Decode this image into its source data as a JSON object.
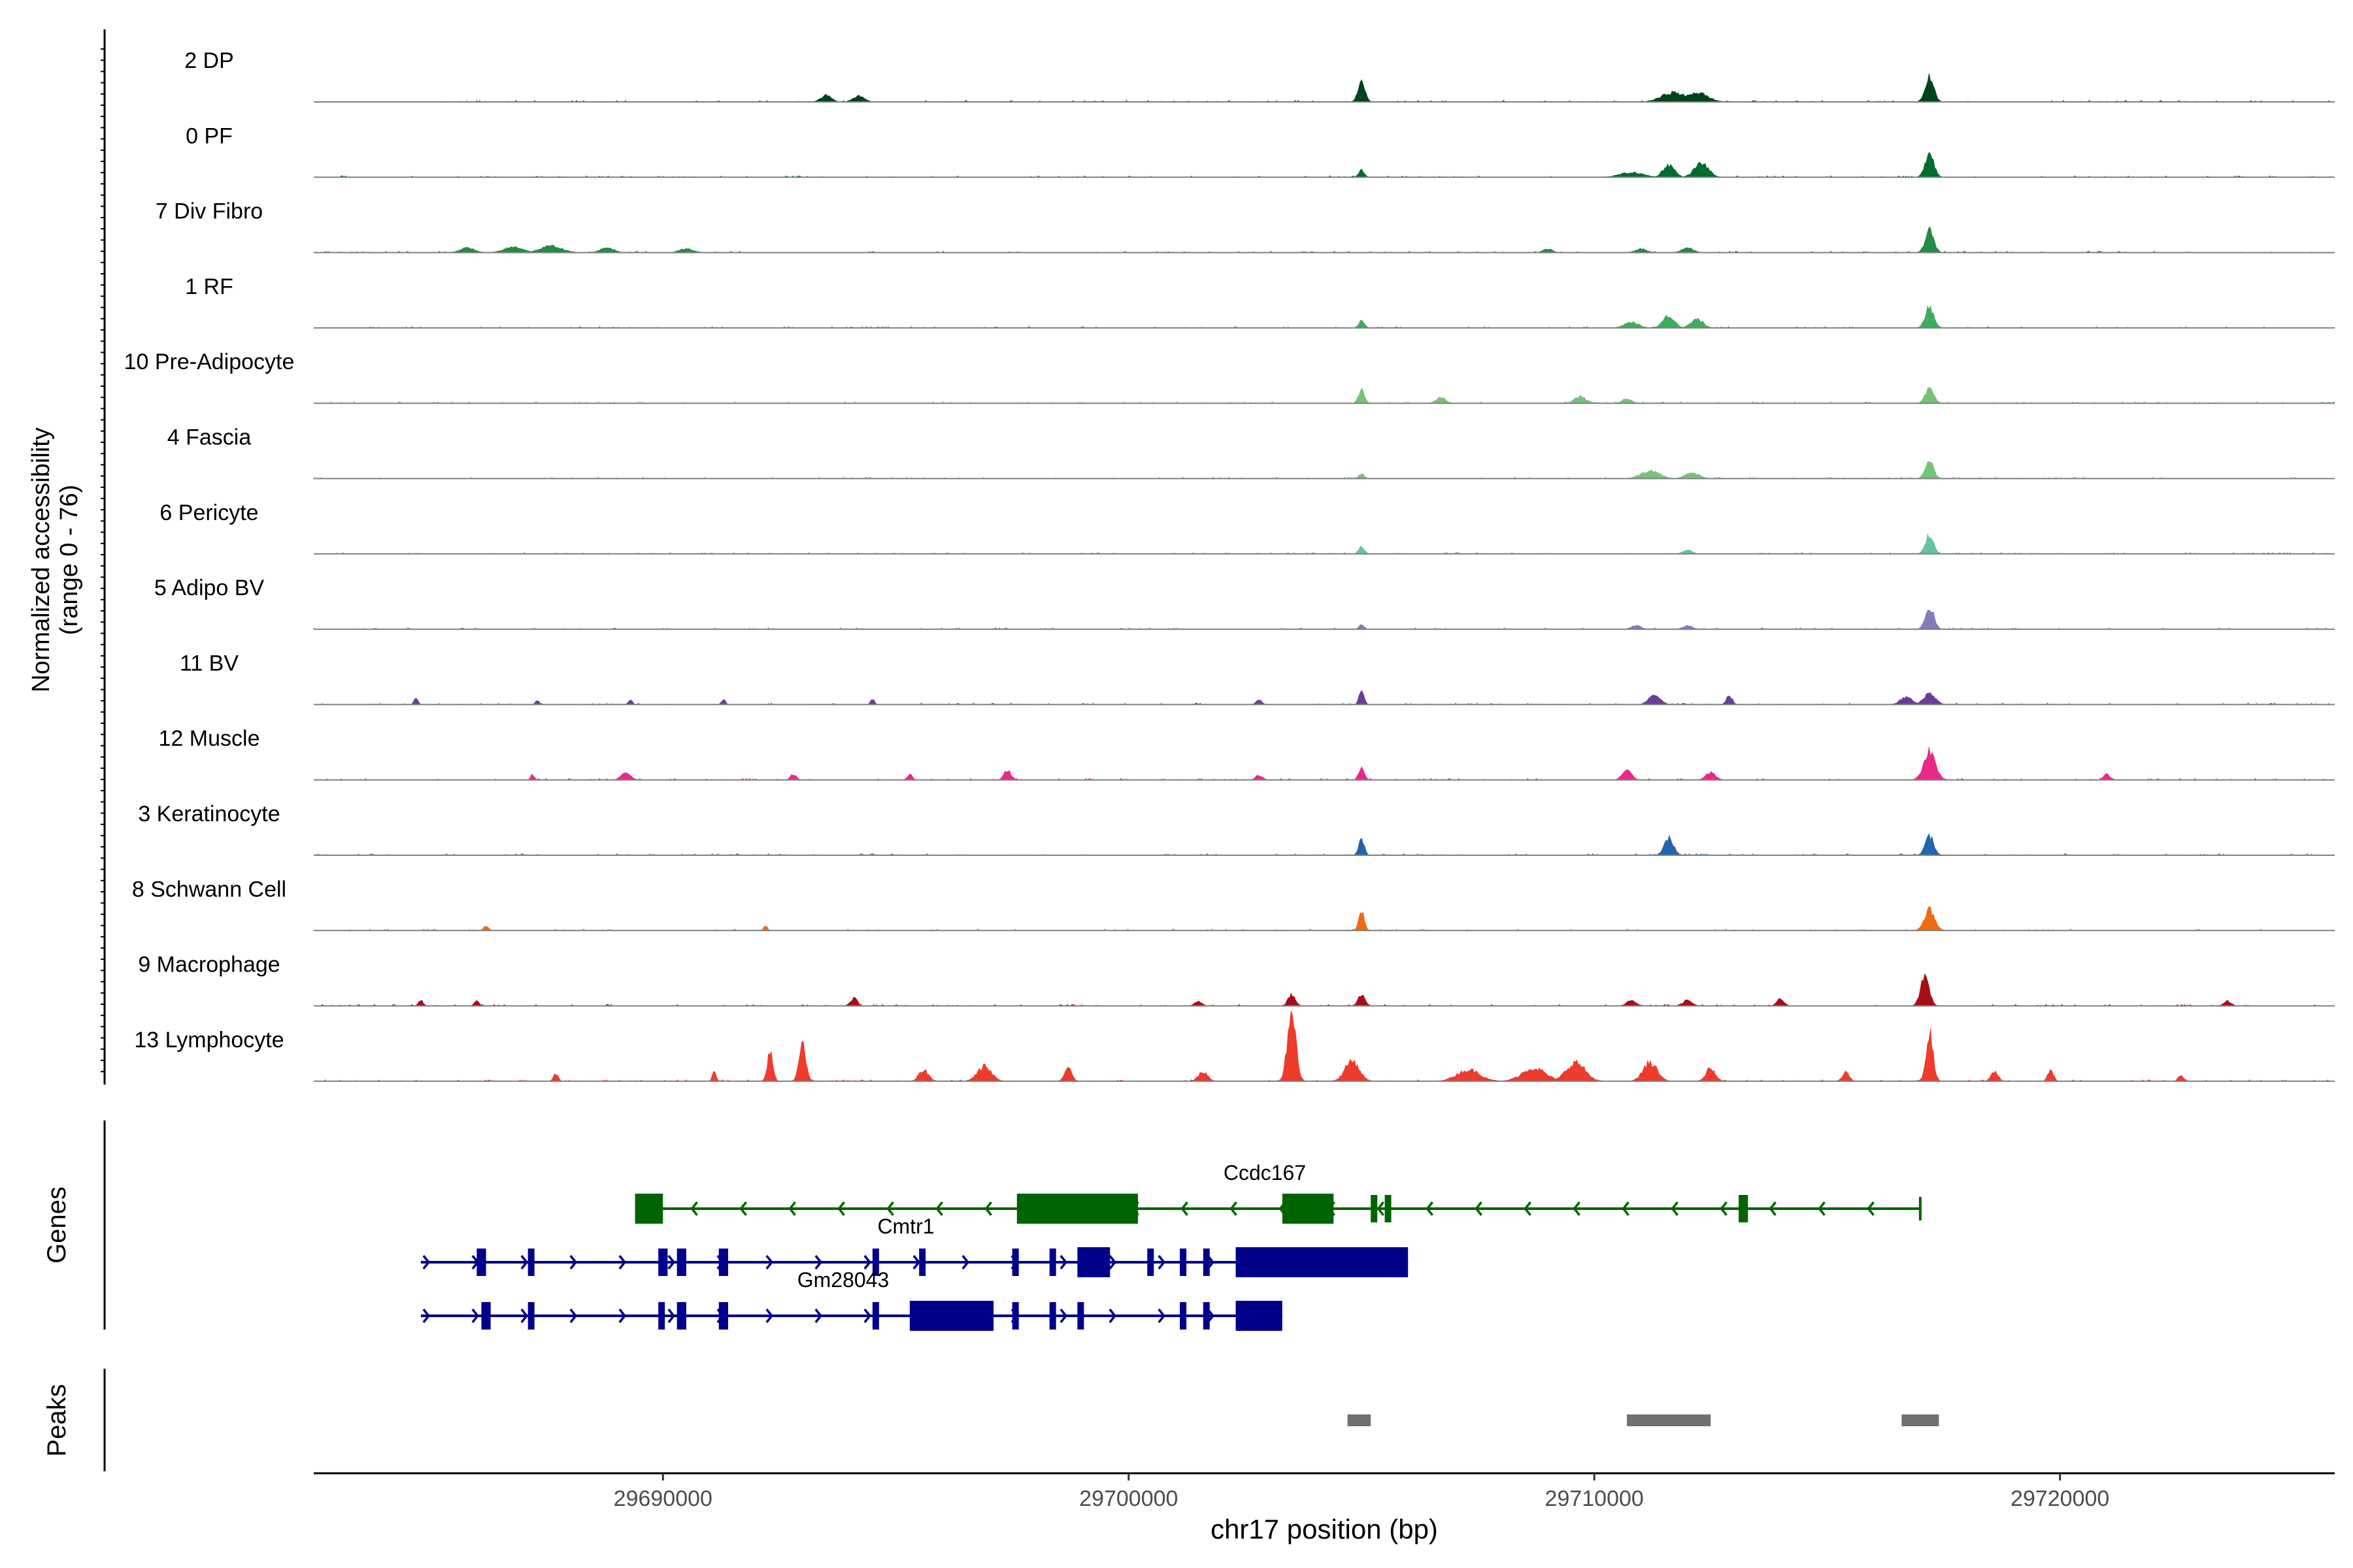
{
  "chart_data": {
    "type": "area",
    "subtype": "genome-coverage-track",
    "title": "",
    "ylabel_line1": "Normalized accessibility",
    "ylabel_line2": "(range 0 - 76)",
    "y_range": [
      0,
      76
    ],
    "xlabel": "chr17 position (bp)",
    "xlim": [
      29682500,
      29725900
    ],
    "x_ticks": [
      29690000,
      29700000,
      29710000,
      29720000
    ],
    "x_tick_labels": [
      "29690000",
      "29700000",
      "29710000",
      "29720000"
    ],
    "series": [
      {
        "name": "2 DP",
        "color": "#00441B",
        "peaks": [
          [
            29693500,
            7,
            220
          ],
          [
            29694200,
            6,
            250
          ],
          [
            29705000,
            22,
            150
          ],
          [
            29711700,
            10,
            500
          ],
          [
            29712200,
            10,
            450
          ],
          [
            29717200,
            26,
            180
          ]
        ]
      },
      {
        "name": "0 PF",
        "color": "#006D2C",
        "peaks": [
          [
            29705000,
            8,
            120
          ],
          [
            29710800,
            5,
            500
          ],
          [
            29711600,
            13,
            250
          ],
          [
            29712300,
            15,
            300
          ],
          [
            29717200,
            28,
            180
          ]
        ]
      },
      {
        "name": "7 Div Fibro",
        "color": "#238B45",
        "peaks": [
          [
            29685800,
            5,
            300
          ],
          [
            29686800,
            6,
            400
          ],
          [
            29687600,
            7,
            450
          ],
          [
            29688800,
            5,
            300
          ],
          [
            29690500,
            4,
            300
          ],
          [
            29709000,
            4,
            200
          ],
          [
            29711000,
            4,
            250
          ],
          [
            29712000,
            5,
            250
          ],
          [
            29717200,
            24,
            180
          ]
        ]
      },
      {
        "name": "1 RF",
        "color": "#41AB5D",
        "peaks": [
          [
            29705000,
            8,
            120
          ],
          [
            29710800,
            6,
            300
          ],
          [
            29711600,
            13,
            250
          ],
          [
            29712200,
            10,
            250
          ],
          [
            29717200,
            22,
            180
          ]
        ]
      },
      {
        "name": "10 Pre-Adipocyte",
        "color": "#74C476",
        "peaks": [
          [
            29705000,
            14,
            130
          ],
          [
            29706700,
            6,
            200
          ],
          [
            29709700,
            7,
            250
          ],
          [
            29710700,
            5,
            200
          ],
          [
            29717200,
            16,
            180
          ]
        ]
      },
      {
        "name": "4 Fascia",
        "color": "#74C476",
        "peaks": [
          [
            29705000,
            5,
            120
          ],
          [
            29711200,
            8,
            400
          ],
          [
            29712100,
            6,
            300
          ],
          [
            29717200,
            18,
            180
          ]
        ]
      },
      {
        "name": "6 Pericyte",
        "color": "#66C2A4",
        "peaks": [
          [
            29705000,
            8,
            120
          ],
          [
            29712000,
            4,
            200
          ],
          [
            29717200,
            20,
            180
          ]
        ]
      },
      {
        "name": "5 Adipo BV",
        "color": "#807DBA",
        "peaks": [
          [
            29705000,
            6,
            100
          ],
          [
            29710900,
            4,
            200
          ],
          [
            29712000,
            4,
            200
          ],
          [
            29717200,
            24,
            180
          ]
        ]
      },
      {
        "name": "11 BV",
        "color": "#6A3D9A",
        "peaks": [
          [
            29684700,
            8,
            80
          ],
          [
            29687300,
            5,
            80
          ],
          [
            29689300,
            6,
            80
          ],
          [
            29691300,
            6,
            80
          ],
          [
            29694500,
            6,
            80
          ],
          [
            29702800,
            5,
            120
          ],
          [
            29705000,
            18,
            100
          ],
          [
            29711300,
            10,
            250
          ],
          [
            29712900,
            10,
            120
          ],
          [
            29716700,
            8,
            250
          ],
          [
            29717200,
            12,
            250
          ]
        ]
      },
      {
        "name": "12 Muscle",
        "color": "#E7298A",
        "peaks": [
          [
            29687200,
            6,
            80
          ],
          [
            29689200,
            8,
            200
          ],
          [
            29692800,
            6,
            120
          ],
          [
            29695300,
            6,
            100
          ],
          [
            29697400,
            10,
            150
          ],
          [
            29702800,
            5,
            150
          ],
          [
            29705000,
            12,
            120
          ],
          [
            29710700,
            10,
            200
          ],
          [
            29712500,
            8,
            200
          ],
          [
            29717200,
            30,
            250
          ],
          [
            29721000,
            6,
            150
          ]
        ]
      },
      {
        "name": "3 Keratinocyte",
        "color": "#2166AC",
        "peaks": [
          [
            29705000,
            16,
            120
          ],
          [
            29711600,
            18,
            200
          ],
          [
            29717200,
            20,
            180
          ]
        ]
      },
      {
        "name": "8 Schwann Cell",
        "color": "#F16913",
        "peaks": [
          [
            29686200,
            5,
            100
          ],
          [
            29692200,
            5,
            80
          ],
          [
            29705000,
            20,
            120
          ],
          [
            29717200,
            22,
            220
          ]
        ]
      },
      {
        "name": "9 Macrophage",
        "color": "#A50F15",
        "peaks": [
          [
            29684800,
            6,
            100
          ],
          [
            29686000,
            5,
            100
          ],
          [
            29694100,
            8,
            150
          ],
          [
            29701500,
            5,
            150
          ],
          [
            29703500,
            12,
            150
          ],
          [
            29705000,
            12,
            150
          ],
          [
            29710800,
            6,
            200
          ],
          [
            29712000,
            6,
            200
          ],
          [
            29714000,
            8,
            150
          ],
          [
            29717100,
            32,
            180
          ],
          [
            29723600,
            5,
            150
          ]
        ]
      },
      {
        "name": "13 Lymphocyte",
        "color": "#EF3B2C",
        "peaks": [
          [
            29687700,
            8,
            100
          ],
          [
            29691100,
            10,
            80
          ],
          [
            29692300,
            30,
            120
          ],
          [
            29693000,
            38,
            150
          ],
          [
            29695600,
            12,
            200
          ],
          [
            29696900,
            16,
            300
          ],
          [
            29698700,
            14,
            150
          ],
          [
            29701600,
            10,
            200
          ],
          [
            29703500,
            76,
            180
          ],
          [
            29704800,
            22,
            300
          ],
          [
            29707300,
            12,
            500
          ],
          [
            29708700,
            14,
            500
          ],
          [
            29709600,
            20,
            400
          ],
          [
            29711200,
            20,
            300
          ],
          [
            29712500,
            14,
            200
          ],
          [
            29715400,
            10,
            150
          ],
          [
            29717200,
            52,
            150
          ],
          [
            29718600,
            10,
            150
          ],
          [
            29719800,
            12,
            120
          ],
          [
            29722600,
            6,
            120
          ]
        ]
      }
    ],
    "genes": {
      "label": "Genes",
      "models": [
        {
          "name": "Ccdc167",
          "strand": "-",
          "color": "#006400",
          "start": 29689400,
          "end": 29717000,
          "exons": [
            [
              29689400,
              29690000,
              "thick"
            ],
            [
              29697600,
              29700200,
              "thick"
            ],
            [
              29703300,
              29704400,
              "thick"
            ],
            [
              29705200,
              29705300,
              "thin"
            ],
            [
              29705500,
              29705600,
              "thin"
            ],
            [
              29713100,
              29713300,
              "thin"
            ]
          ]
        },
        {
          "name": "Cmtr1",
          "strand": "+",
          "color": "#00008B",
          "start": 29684800,
          "end": 29706000,
          "exons": [
            [
              29686000,
              29686200,
              "thin"
            ],
            [
              29687100,
              29687200,
              "thin"
            ],
            [
              29689900,
              29690100,
              "thin"
            ],
            [
              29690300,
              29690500,
              "thin"
            ],
            [
              29691200,
              29691400,
              "thin"
            ],
            [
              29694500,
              29694600,
              "thin"
            ],
            [
              29695500,
              29695600,
              "thin"
            ],
            [
              29697500,
              29697600,
              "thin"
            ],
            [
              29698300,
              29698400,
              "thin"
            ],
            [
              29698900,
              29699600,
              "thick"
            ],
            [
              29700400,
              29700500,
              "thin"
            ],
            [
              29701100,
              29701200,
              "thin"
            ],
            [
              29701600,
              29701700,
              "thin"
            ],
            [
              29702300,
              29706000,
              "thick"
            ]
          ]
        },
        {
          "name": "Gm28043",
          "strand": "+",
          "color": "#00008B",
          "start": 29684800,
          "end": 29703300,
          "exons": [
            [
              29686100,
              29686300,
              "thin"
            ],
            [
              29687100,
              29687200,
              "thin"
            ],
            [
              29689900,
              29690000,
              "thin"
            ],
            [
              29690300,
              29690500,
              "thin"
            ],
            [
              29691200,
              29691400,
              "thin"
            ],
            [
              29694500,
              29694600,
              "thin"
            ],
            [
              29695300,
              29697100,
              "thick"
            ],
            [
              29697500,
              29697600,
              "thin"
            ],
            [
              29698300,
              29698400,
              "thin"
            ],
            [
              29698900,
              29699000,
              "thin"
            ],
            [
              29701100,
              29701200,
              "thin"
            ],
            [
              29701600,
              29701700,
              "thin"
            ],
            [
              29702300,
              29703300,
              "thick"
            ]
          ]
        }
      ]
    },
    "peaks_track": {
      "label": "Peaks",
      "color": "#707070",
      "regions": [
        [
          29704700,
          29705200
        ],
        [
          29710700,
          29712500
        ],
        [
          29716600,
          29717400
        ]
      ]
    }
  }
}
